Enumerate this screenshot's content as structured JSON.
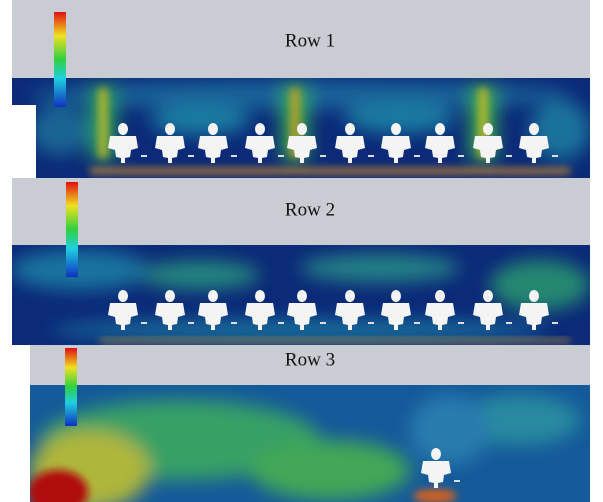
{
  "panels": [
    {
      "title": "Row 1"
    },
    {
      "title": "Row 2"
    },
    {
      "title": "Row 3"
    }
  ]
}
